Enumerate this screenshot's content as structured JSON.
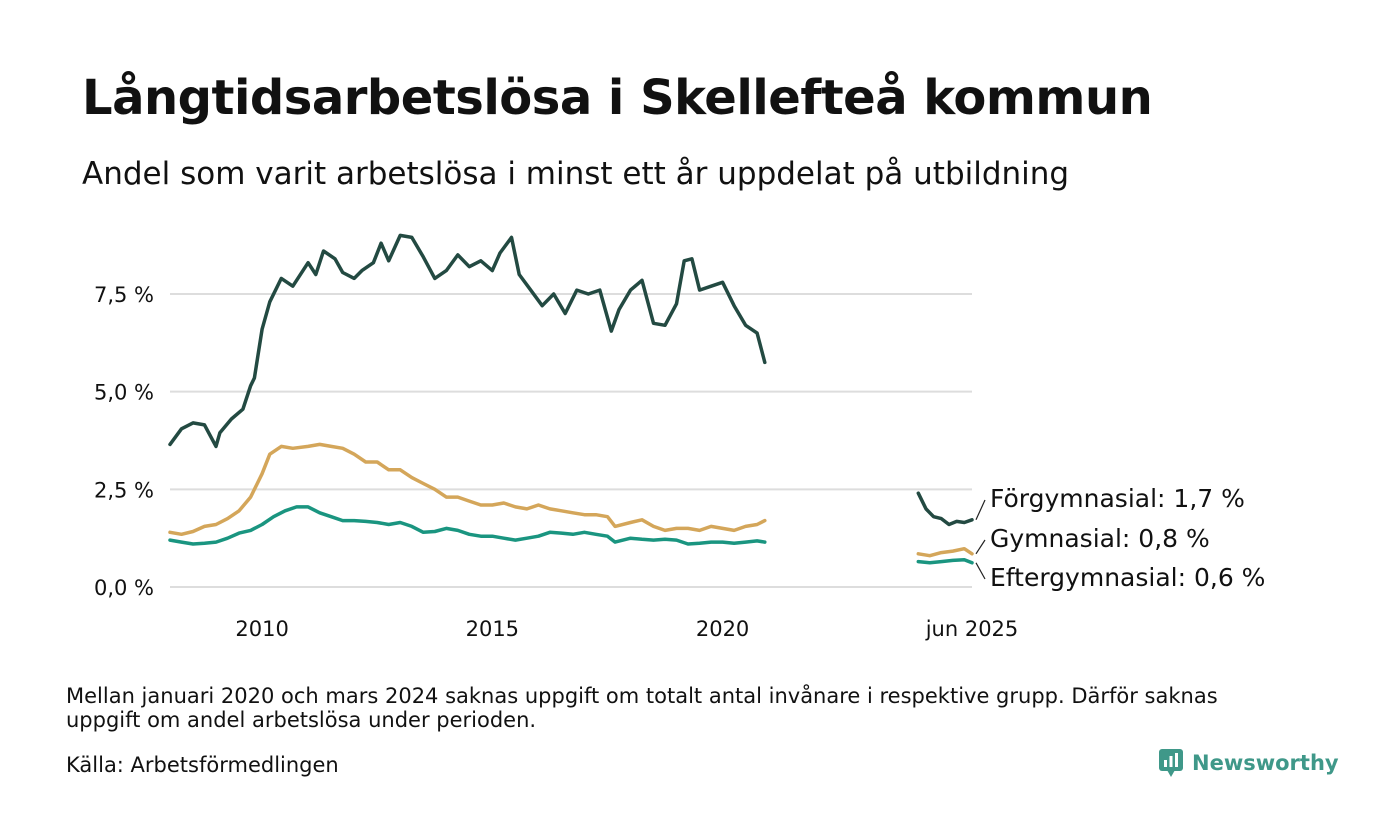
{
  "header": {
    "title": "Långtidsarbetslösa i Skellefteå kommun",
    "subtitle": "Andel som varit arbetslösa i minst ett år uppdelat på utbildning"
  },
  "footer": {
    "note": "Mellan januari 2020 och mars 2024 saknas uppgift om totalt antal invånare i respektive grupp. Därför saknas uppgift om andel arbetslösa under perioden.",
    "source": "Källa: Arbetsförmedlingen",
    "brand": "Newsworthy",
    "brand_icon": "newsworthy-logo-icon",
    "brand_color": "#3f9889"
  },
  "chart_data": {
    "type": "line",
    "title": "Långtidsarbetslösa i Skellefteå kommun",
    "subtitle": "Andel som varit arbetslösa i minst ett år uppdelat på utbildning",
    "xlabel": "",
    "ylabel": "",
    "ylim": [
      0,
      9.3
    ],
    "y_ticks": [
      {
        "value": 0,
        "label": "0,0 %"
      },
      {
        "value": 2.5,
        "label": "2,5 %"
      },
      {
        "value": 5,
        "label": "5,0 %"
      },
      {
        "value": 7.5,
        "label": "7,5 %"
      }
    ],
    "x_ticks": [
      {
        "value": "2010-01",
        "label": "2010"
      },
      {
        "value": "2015-01",
        "label": "2015"
      },
      {
        "value": "2020-01",
        "label": "2020"
      },
      {
        "value": "2025-06",
        "label": "jun 2025"
      }
    ],
    "grid": "horizontal",
    "legend": "end-labels-right",
    "series": [
      {
        "name": "Förgymnasial",
        "end_label": "Förgymnasial: 1,7 %",
        "color": "#234a42",
        "segments": [
          [
            {
              "x": "2008-01",
              "y": 3.65
            },
            {
              "x": "2008-04",
              "y": 4.05
            },
            {
              "x": "2008-07",
              "y": 4.2
            },
            {
              "x": "2008-10",
              "y": 4.15
            },
            {
              "x": "2009-01",
              "y": 3.6
            },
            {
              "x": "2009-02",
              "y": 3.95
            },
            {
              "x": "2009-05",
              "y": 4.3
            },
            {
              "x": "2009-08",
              "y": 4.55
            },
            {
              "x": "2009-10",
              "y": 5.15
            },
            {
              "x": "2009-11",
              "y": 5.35
            },
            {
              "x": "2010-01",
              "y": 6.6
            },
            {
              "x": "2010-03",
              "y": 7.3
            },
            {
              "x": "2010-06",
              "y": 7.9
            },
            {
              "x": "2010-09",
              "y": 7.7
            },
            {
              "x": "2011-01",
              "y": 8.3
            },
            {
              "x": "2011-03",
              "y": 8.0
            },
            {
              "x": "2011-05",
              "y": 8.6
            },
            {
              "x": "2011-08",
              "y": 8.4
            },
            {
              "x": "2011-10",
              "y": 8.05
            },
            {
              "x": "2012-01",
              "y": 7.9
            },
            {
              "x": "2012-03",
              "y": 8.1
            },
            {
              "x": "2012-06",
              "y": 8.3
            },
            {
              "x": "2012-08",
              "y": 8.8
            },
            {
              "x": "2012-10",
              "y": 8.35
            },
            {
              "x": "2013-01",
              "y": 9.0
            },
            {
              "x": "2013-04",
              "y": 8.95
            },
            {
              "x": "2013-07",
              "y": 8.45
            },
            {
              "x": "2013-10",
              "y": 7.9
            },
            {
              "x": "2014-01",
              "y": 8.1
            },
            {
              "x": "2014-04",
              "y": 8.5
            },
            {
              "x": "2014-07",
              "y": 8.2
            },
            {
              "x": "2014-10",
              "y": 8.35
            },
            {
              "x": "2015-01",
              "y": 8.1
            },
            {
              "x": "2015-03",
              "y": 8.55
            },
            {
              "x": "2015-06",
              "y": 8.95
            },
            {
              "x": "2015-08",
              "y": 8.0
            },
            {
              "x": "2015-11",
              "y": 7.6
            },
            {
              "x": "2016-02",
              "y": 7.2
            },
            {
              "x": "2016-05",
              "y": 7.5
            },
            {
              "x": "2016-08",
              "y": 7.0
            },
            {
              "x": "2016-11",
              "y": 7.6
            },
            {
              "x": "2017-02",
              "y": 7.5
            },
            {
              "x": "2017-05",
              "y": 7.6
            },
            {
              "x": "2017-08",
              "y": 6.55
            },
            {
              "x": "2017-10",
              "y": 7.1
            },
            {
              "x": "2018-01",
              "y": 7.6
            },
            {
              "x": "2018-04",
              "y": 7.85
            },
            {
              "x": "2018-07",
              "y": 6.75
            },
            {
              "x": "2018-10",
              "y": 6.7
            },
            {
              "x": "2019-01",
              "y": 7.25
            },
            {
              "x": "2019-03",
              "y": 8.35
            },
            {
              "x": "2019-05",
              "y": 8.4
            },
            {
              "x": "2019-07",
              "y": 7.6
            },
            {
              "x": "2019-10",
              "y": 7.7
            },
            {
              "x": "2020-01",
              "y": 7.8
            },
            {
              "x": "2020-04",
              "y": 7.2
            },
            {
              "x": "2020-07",
              "y": 6.7
            },
            {
              "x": "2020-10",
              "y": 6.5
            },
            {
              "x": "2020-12",
              "y": 5.75
            }
          ],
          [
            {
              "x": "2024-04",
              "y": 2.4
            },
            {
              "x": "2024-06",
              "y": 2.0
            },
            {
              "x": "2024-08",
              "y": 1.8
            },
            {
              "x": "2024-10",
              "y": 1.75
            },
            {
              "x": "2024-12",
              "y": 1.6
            },
            {
              "x": "2025-02",
              "y": 1.68
            },
            {
              "x": "2025-04",
              "y": 1.65
            },
            {
              "x": "2025-06",
              "y": 1.72
            }
          ]
        ]
      },
      {
        "name": "Gymnasial",
        "end_label": "Gymnasial: 0,8 %",
        "color": "#d4a65a",
        "segments": [
          [
            {
              "x": "2008-01",
              "y": 1.4
            },
            {
              "x": "2008-04",
              "y": 1.35
            },
            {
              "x": "2008-07",
              "y": 1.42
            },
            {
              "x": "2008-10",
              "y": 1.55
            },
            {
              "x": "2009-01",
              "y": 1.6
            },
            {
              "x": "2009-04",
              "y": 1.75
            },
            {
              "x": "2009-07",
              "y": 1.95
            },
            {
              "x": "2009-10",
              "y": 2.3
            },
            {
              "x": "2010-01",
              "y": 2.9
            },
            {
              "x": "2010-03",
              "y": 3.4
            },
            {
              "x": "2010-06",
              "y": 3.6
            },
            {
              "x": "2010-09",
              "y": 3.55
            },
            {
              "x": "2011-01",
              "y": 3.6
            },
            {
              "x": "2011-04",
              "y": 3.65
            },
            {
              "x": "2011-07",
              "y": 3.6
            },
            {
              "x": "2011-10",
              "y": 3.55
            },
            {
              "x": "2012-01",
              "y": 3.4
            },
            {
              "x": "2012-04",
              "y": 3.2
            },
            {
              "x": "2012-07",
              "y": 3.2
            },
            {
              "x": "2012-10",
              "y": 3.0
            },
            {
              "x": "2013-01",
              "y": 3.0
            },
            {
              "x": "2013-04",
              "y": 2.8
            },
            {
              "x": "2013-07",
              "y": 2.65
            },
            {
              "x": "2013-10",
              "y": 2.5
            },
            {
              "x": "2014-01",
              "y": 2.3
            },
            {
              "x": "2014-04",
              "y": 2.3
            },
            {
              "x": "2014-07",
              "y": 2.2
            },
            {
              "x": "2014-10",
              "y": 2.1
            },
            {
              "x": "2015-01",
              "y": 2.1
            },
            {
              "x": "2015-04",
              "y": 2.15
            },
            {
              "x": "2015-07",
              "y": 2.05
            },
            {
              "x": "2015-10",
              "y": 2.0
            },
            {
              "x": "2016-01",
              "y": 2.1
            },
            {
              "x": "2016-04",
              "y": 2.0
            },
            {
              "x": "2016-07",
              "y": 1.95
            },
            {
              "x": "2016-10",
              "y": 1.9
            },
            {
              "x": "2017-01",
              "y": 1.85
            },
            {
              "x": "2017-04",
              "y": 1.85
            },
            {
              "x": "2017-07",
              "y": 1.8
            },
            {
              "x": "2017-09",
              "y": 1.55
            },
            {
              "x": "2018-01",
              "y": 1.65
            },
            {
              "x": "2018-04",
              "y": 1.72
            },
            {
              "x": "2018-07",
              "y": 1.55
            },
            {
              "x": "2018-10",
              "y": 1.45
            },
            {
              "x": "2019-01",
              "y": 1.5
            },
            {
              "x": "2019-04",
              "y": 1.5
            },
            {
              "x": "2019-07",
              "y": 1.45
            },
            {
              "x": "2019-10",
              "y": 1.55
            },
            {
              "x": "2020-01",
              "y": 1.5
            },
            {
              "x": "2020-04",
              "y": 1.45
            },
            {
              "x": "2020-07",
              "y": 1.55
            },
            {
              "x": "2020-10",
              "y": 1.6
            },
            {
              "x": "2020-12",
              "y": 1.7
            }
          ],
          [
            {
              "x": "2024-04",
              "y": 0.85
            },
            {
              "x": "2024-07",
              "y": 0.8
            },
            {
              "x": "2024-10",
              "y": 0.88
            },
            {
              "x": "2025-01",
              "y": 0.92
            },
            {
              "x": "2025-04",
              "y": 0.98
            },
            {
              "x": "2025-06",
              "y": 0.85
            }
          ]
        ]
      },
      {
        "name": "Eftergymnasial",
        "end_label": "Eftergymnasial: 0,6 %",
        "color": "#1a9580",
        "segments": [
          [
            {
              "x": "2008-01",
              "y": 1.2
            },
            {
              "x": "2008-04",
              "y": 1.15
            },
            {
              "x": "2008-07",
              "y": 1.1
            },
            {
              "x": "2008-10",
              "y": 1.12
            },
            {
              "x": "2009-01",
              "y": 1.15
            },
            {
              "x": "2009-04",
              "y": 1.25
            },
            {
              "x": "2009-07",
              "y": 1.38
            },
            {
              "x": "2009-10",
              "y": 1.45
            },
            {
              "x": "2010-01",
              "y": 1.6
            },
            {
              "x": "2010-04",
              "y": 1.8
            },
            {
              "x": "2010-07",
              "y": 1.95
            },
            {
              "x": "2010-10",
              "y": 2.05
            },
            {
              "x": "2011-01",
              "y": 2.05
            },
            {
              "x": "2011-04",
              "y": 1.9
            },
            {
              "x": "2011-07",
              "y": 1.8
            },
            {
              "x": "2011-10",
              "y": 1.7
            },
            {
              "x": "2012-01",
              "y": 1.7
            },
            {
              "x": "2012-04",
              "y": 1.68
            },
            {
              "x": "2012-07",
              "y": 1.65
            },
            {
              "x": "2012-10",
              "y": 1.6
            },
            {
              "x": "2013-01",
              "y": 1.65
            },
            {
              "x": "2013-04",
              "y": 1.55
            },
            {
              "x": "2013-07",
              "y": 1.4
            },
            {
              "x": "2013-10",
              "y": 1.42
            },
            {
              "x": "2014-01",
              "y": 1.5
            },
            {
              "x": "2014-04",
              "y": 1.45
            },
            {
              "x": "2014-07",
              "y": 1.35
            },
            {
              "x": "2014-10",
              "y": 1.3
            },
            {
              "x": "2015-01",
              "y": 1.3
            },
            {
              "x": "2015-04",
              "y": 1.25
            },
            {
              "x": "2015-07",
              "y": 1.2
            },
            {
              "x": "2015-10",
              "y": 1.25
            },
            {
              "x": "2016-01",
              "y": 1.3
            },
            {
              "x": "2016-04",
              "y": 1.4
            },
            {
              "x": "2016-07",
              "y": 1.38
            },
            {
              "x": "2016-10",
              "y": 1.35
            },
            {
              "x": "2017-01",
              "y": 1.4
            },
            {
              "x": "2017-04",
              "y": 1.35
            },
            {
              "x": "2017-07",
              "y": 1.3
            },
            {
              "x": "2017-09",
              "y": 1.15
            },
            {
              "x": "2018-01",
              "y": 1.25
            },
            {
              "x": "2018-04",
              "y": 1.22
            },
            {
              "x": "2018-07",
              "y": 1.2
            },
            {
              "x": "2018-10",
              "y": 1.22
            },
            {
              "x": "2019-01",
              "y": 1.2
            },
            {
              "x": "2019-04",
              "y": 1.1
            },
            {
              "x": "2019-07",
              "y": 1.12
            },
            {
              "x": "2019-10",
              "y": 1.15
            },
            {
              "x": "2020-01",
              "y": 1.15
            },
            {
              "x": "2020-04",
              "y": 1.12
            },
            {
              "x": "2020-07",
              "y": 1.15
            },
            {
              "x": "2020-10",
              "y": 1.18
            },
            {
              "x": "2020-12",
              "y": 1.15
            }
          ],
          [
            {
              "x": "2024-04",
              "y": 0.65
            },
            {
              "x": "2024-07",
              "y": 0.62
            },
            {
              "x": "2024-10",
              "y": 0.65
            },
            {
              "x": "2025-01",
              "y": 0.68
            },
            {
              "x": "2025-04",
              "y": 0.7
            },
            {
              "x": "2025-06",
              "y": 0.62
            }
          ]
        ]
      }
    ]
  }
}
